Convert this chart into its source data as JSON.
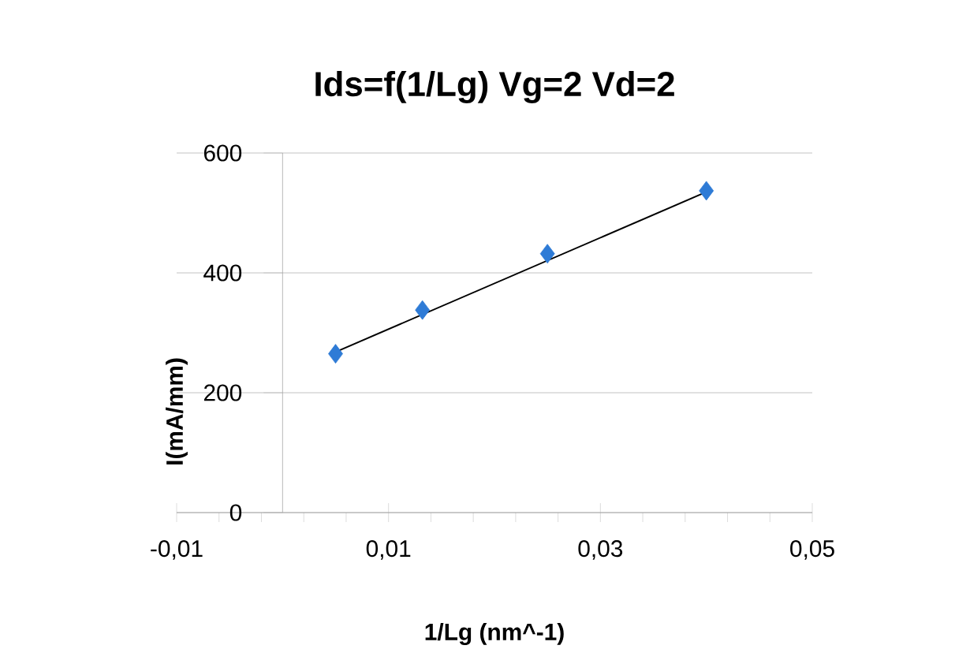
{
  "chart_data": {
    "type": "scatter",
    "title": "Ids=f(1/Lg)  Vg=2  Vd=2",
    "xlabel": "1/Lg (nm^-1)",
    "ylabel": "I(mA/mm)",
    "x": [
      0.005,
      0.0132,
      0.025,
      0.04
    ],
    "series": [
      {
        "type": "scatter",
        "color": "#2e7bd6",
        "marker": "diamond",
        "values": [
          265,
          338,
          432,
          537
        ]
      },
      {
        "type": "line",
        "color": "#000000",
        "marker": "none",
        "x": [
          0.005,
          0.04
        ],
        "values": [
          268,
          535
        ]
      }
    ],
    "xlim": [
      -0.01,
      0.05
    ],
    "ylim": [
      0,
      600
    ],
    "xticks": [
      {
        "value": -0.01,
        "label": "-0,01"
      },
      {
        "value": -0.006,
        "label": null
      },
      {
        "value": -0.002,
        "label": null
      },
      {
        "value": 0.002,
        "label": null
      },
      {
        "value": 0.006,
        "label": null
      },
      {
        "value": 0.01,
        "label": "0,01"
      },
      {
        "value": 0.014,
        "label": null
      },
      {
        "value": 0.018,
        "label": null
      },
      {
        "value": 0.022,
        "label": null
      },
      {
        "value": 0.026,
        "label": null
      },
      {
        "value": 0.03,
        "label": "0,03"
      },
      {
        "value": 0.034,
        "label": null
      },
      {
        "value": 0.038,
        "label": null
      },
      {
        "value": 0.042,
        "label": null
      },
      {
        "value": 0.046,
        "label": null
      },
      {
        "value": 0.05,
        "label": "0,05"
      }
    ],
    "yticks": [
      0,
      200,
      400,
      600
    ],
    "grid": "y"
  }
}
